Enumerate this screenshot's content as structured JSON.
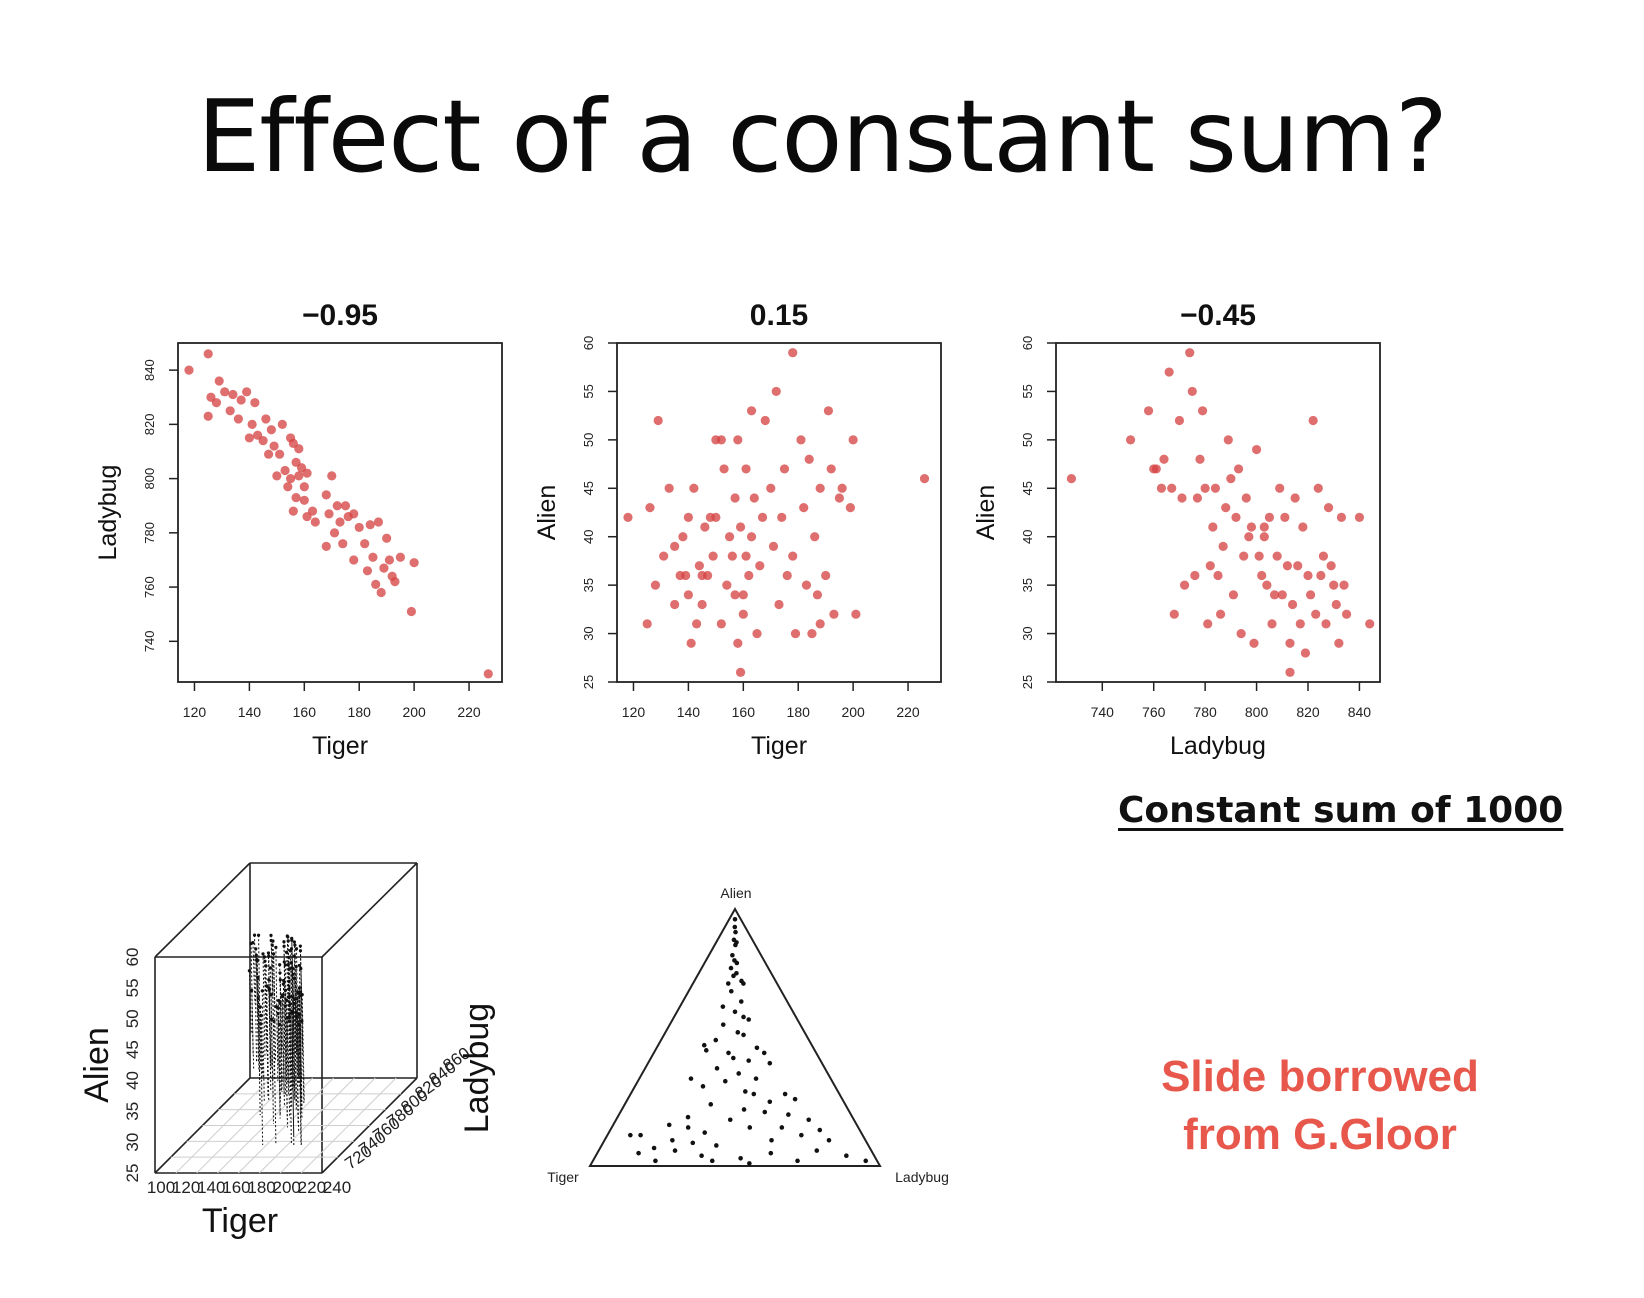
{
  "slide": {
    "title": "Effect of a constant sum?",
    "subtitle": "Constant sum of 1000",
    "credit_line1": "Slide borrowed",
    "credit_line2": "from G.Gloor",
    "point_color": "#d64545",
    "ternary_point_color": "#111111",
    "credit_color": "#e8574c"
  },
  "chart_data": [
    {
      "type": "scatter",
      "title": "−0.95",
      "xlabel": "Tiger",
      "ylabel": "Ladybug",
      "xlim": [
        114,
        232
      ],
      "ylim": [
        725,
        850
      ],
      "xticks": [
        120,
        140,
        160,
        180,
        200,
        220
      ],
      "yticks": [
        740,
        760,
        780,
        800,
        820,
        840
      ],
      "points": [
        [
          118,
          840
        ],
        [
          125,
          846
        ],
        [
          129,
          836
        ],
        [
          126,
          830
        ],
        [
          131,
          832
        ],
        [
          125,
          823
        ],
        [
          128,
          828
        ],
        [
          134,
          831
        ],
        [
          137,
          829
        ],
        [
          133,
          825
        ],
        [
          139,
          832
        ],
        [
          142,
          828
        ],
        [
          136,
          822
        ],
        [
          141,
          820
        ],
        [
          146,
          822
        ],
        [
          143,
          816
        ],
        [
          148,
          818
        ],
        [
          140,
          815
        ],
        [
          152,
          820
        ],
        [
          149,
          812
        ],
        [
          145,
          814
        ],
        [
          155,
          815
        ],
        [
          151,
          809
        ],
        [
          147,
          809
        ],
        [
          156,
          813
        ],
        [
          157,
          806
        ],
        [
          153,
          803
        ],
        [
          158,
          811
        ],
        [
          150,
          801
        ],
        [
          159,
          804
        ],
        [
          160,
          797
        ],
        [
          155,
          800
        ],
        [
          161,
          802
        ],
        [
          154,
          797
        ],
        [
          157,
          793
        ],
        [
          158,
          801
        ],
        [
          160,
          792
        ],
        [
          163,
          788
        ],
        [
          156,
          788
        ],
        [
          161,
          786
        ],
        [
          164,
          784
        ],
        [
          170,
          801
        ],
        [
          168,
          794
        ],
        [
          172,
          790
        ],
        [
          169,
          787
        ],
        [
          175,
          790
        ],
        [
          173,
          784
        ],
        [
          176,
          786
        ],
        [
          178,
          787
        ],
        [
          171,
          780
        ],
        [
          168,
          775
        ],
        [
          174,
          776
        ],
        [
          180,
          782
        ],
        [
          182,
          776
        ],
        [
          178,
          770
        ],
        [
          184,
          783
        ],
        [
          187,
          784
        ],
        [
          185,
          771
        ],
        [
          190,
          778
        ],
        [
          183,
          766
        ],
        [
          186,
          761
        ],
        [
          189,
          767
        ],
        [
          188,
          758
        ],
        [
          192,
          764
        ],
        [
          191,
          770
        ],
        [
          195,
          771
        ],
        [
          193,
          762
        ],
        [
          200,
          769
        ],
        [
          199,
          751
        ],
        [
          227,
          728
        ]
      ]
    },
    {
      "type": "scatter",
      "title": "0.15",
      "xlabel": "Tiger",
      "ylabel": "Alien",
      "xlim": [
        114,
        232
      ],
      "ylim": [
        25,
        60
      ],
      "xticks": [
        120,
        140,
        160,
        180,
        200,
        220
      ],
      "yticks": [
        25,
        30,
        35,
        40,
        45,
        50,
        55,
        60
      ],
      "points": [
        [
          118,
          42
        ],
        [
          125,
          31
        ],
        [
          126,
          43
        ],
        [
          128,
          35
        ],
        [
          131,
          38
        ],
        [
          133,
          45
        ],
        [
          135,
          33
        ],
        [
          137,
          36
        ],
        [
          138,
          40
        ],
        [
          140,
          34
        ],
        [
          140,
          42
        ],
        [
          141,
          29
        ],
        [
          142,
          45
        ],
        [
          143,
          31
        ],
        [
          144,
          37
        ],
        [
          145,
          33
        ],
        [
          146,
          41
        ],
        [
          147,
          36
        ],
        [
          149,
          38
        ],
        [
          150,
          42
        ],
        [
          152,
          31
        ],
        [
          153,
          47
        ],
        [
          154,
          35
        ],
        [
          155,
          40
        ],
        [
          156,
          38
        ],
        [
          157,
          44
        ],
        [
          157,
          34
        ],
        [
          158,
          50
        ],
        [
          159,
          41
        ],
        [
          160,
          32
        ],
        [
          161,
          47
        ],
        [
          162,
          36
        ],
        [
          163,
          53
        ],
        [
          164,
          44
        ],
        [
          165,
          30
        ],
        [
          166,
          37
        ],
        [
          167,
          42
        ],
        [
          168,
          52
        ],
        [
          170,
          45
        ],
        [
          171,
          39
        ],
        [
          172,
          55
        ],
        [
          173,
          33
        ],
        [
          174,
          42
        ],
        [
          175,
          47
        ],
        [
          176,
          36
        ],
        [
          178,
          38
        ],
        [
          179,
          30
        ],
        [
          181,
          50
        ],
        [
          182,
          43
        ],
        [
          183,
          35
        ],
        [
          184,
          48
        ],
        [
          185,
          30
        ],
        [
          186,
          40
        ],
        [
          187,
          34
        ],
        [
          188,
          45
        ],
        [
          190,
          36
        ],
        [
          191,
          53
        ],
        [
          192,
          47
        ],
        [
          193,
          32
        ],
        [
          195,
          44
        ],
        [
          199,
          43
        ],
        [
          200,
          50
        ],
        [
          201,
          32
        ],
        [
          226,
          46
        ],
        [
          158,
          29
        ],
        [
          159,
          26
        ],
        [
          160,
          34
        ],
        [
          161,
          38
        ],
        [
          163,
          40
        ],
        [
          148,
          42
        ],
        [
          150,
          50
        ],
        [
          145,
          36
        ],
        [
          178,
          59
        ],
        [
          139,
          36
        ],
        [
          135,
          39
        ],
        [
          129,
          52
        ],
        [
          152,
          50
        ],
        [
          188,
          31
        ],
        [
          196,
          45
        ]
      ]
    },
    {
      "type": "scatter",
      "title": "−0.45",
      "xlabel": "Ladybug",
      "ylabel": "Alien",
      "xlim": [
        722,
        848
      ],
      "ylim": [
        25,
        60
      ],
      "xticks": [
        740,
        760,
        780,
        800,
        820,
        840
      ],
      "yticks": [
        25,
        30,
        35,
        40,
        45,
        50,
        55,
        60
      ],
      "points": [
        [
          728,
          46
        ],
        [
          751,
          50
        ],
        [
          758,
          53
        ],
        [
          761,
          47
        ],
        [
          763,
          45
        ],
        [
          764,
          48
        ],
        [
          766,
          57
        ],
        [
          767,
          45
        ],
        [
          768,
          32
        ],
        [
          770,
          52
        ],
        [
          771,
          44
        ],
        [
          772,
          35
        ],
        [
          774,
          59
        ],
        [
          775,
          55
        ],
        [
          776,
          36
        ],
        [
          777,
          44
        ],
        [
          778,
          48
        ],
        [
          779,
          53
        ],
        [
          780,
          45
        ],
        [
          781,
          31
        ],
        [
          782,
          37
        ],
        [
          783,
          41
        ],
        [
          784,
          45
        ],
        [
          785,
          36
        ],
        [
          786,
          32
        ],
        [
          787,
          39
        ],
        [
          788,
          43
        ],
        [
          789,
          50
        ],
        [
          790,
          46
        ],
        [
          791,
          34
        ],
        [
          792,
          42
        ],
        [
          793,
          47
        ],
        [
          794,
          30
        ],
        [
          795,
          38
        ],
        [
          796,
          44
        ],
        [
          797,
          40
        ],
        [
          798,
          41
        ],
        [
          799,
          29
        ],
        [
          800,
          49
        ],
        [
          801,
          38
        ],
        [
          802,
          36
        ],
        [
          803,
          40
        ],
        [
          804,
          35
        ],
        [
          805,
          42
        ],
        [
          806,
          31
        ],
        [
          807,
          34
        ],
        [
          808,
          38
        ],
        [
          809,
          45
        ],
        [
          810,
          34
        ],
        [
          811,
          42
        ],
        [
          812,
          37
        ],
        [
          813,
          29
        ],
        [
          814,
          33
        ],
        [
          815,
          44
        ],
        [
          816,
          37
        ],
        [
          817,
          31
        ],
        [
          818,
          41
        ],
        [
          819,
          28
        ],
        [
          820,
          36
        ],
        [
          821,
          34
        ],
        [
          822,
          52
        ],
        [
          823,
          32
        ],
        [
          824,
          45
        ],
        [
          825,
          36
        ],
        [
          826,
          38
        ],
        [
          827,
          31
        ],
        [
          828,
          43
        ],
        [
          829,
          37
        ],
        [
          830,
          35
        ],
        [
          831,
          33
        ],
        [
          832,
          29
        ],
        [
          833,
          42
        ],
        [
          834,
          35
        ],
        [
          835,
          32
        ],
        [
          840,
          42
        ],
        [
          844,
          31
        ],
        [
          760,
          47
        ],
        [
          813,
          26
        ],
        [
          803,
          41
        ]
      ]
    },
    {
      "type": "scatter",
      "subtype": "3d-scatter",
      "xlabel": "Tiger",
      "ylabel": "Ladybug",
      "zlabel": "Alien",
      "xticks": [
        100,
        120,
        140,
        160,
        180,
        200,
        220,
        240
      ],
      "yticks": [
        720,
        740,
        760,
        780,
        800,
        820,
        840,
        860
      ],
      "zticks": [
        25,
        30,
        35,
        40,
        45,
        50,
        55,
        60
      ]
    },
    {
      "type": "scatter",
      "subtype": "ternary",
      "vertex_labels": [
        "Alien",
        "Tiger",
        "Ladybug"
      ],
      "points": [
        [
          0.5,
          0.96
        ],
        [
          0.49,
          0.93
        ],
        [
          0.52,
          0.91
        ],
        [
          0.47,
          0.88
        ],
        [
          0.51,
          0.86
        ],
        [
          0.54,
          0.87
        ],
        [
          0.45,
          0.82
        ],
        [
          0.49,
          0.8
        ],
        [
          0.53,
          0.79
        ],
        [
          0.44,
          0.77
        ],
        [
          0.48,
          0.74
        ],
        [
          0.52,
          0.75
        ],
        [
          0.58,
          0.72
        ],
        [
          0.6,
          0.71
        ],
        [
          0.42,
          0.71
        ],
        [
          0.46,
          0.68
        ],
        [
          0.56,
          0.64
        ],
        [
          0.39,
          0.62
        ],
        [
          0.5,
          0.6
        ],
        [
          0.57,
          0.58
        ],
        [
          0.61,
          0.57
        ],
        [
          0.41,
          0.55
        ],
        [
          0.52,
          0.52
        ],
        [
          0.56,
          0.51
        ],
        [
          0.37,
          0.49
        ],
        [
          0.3,
          0.47
        ],
        [
          0.32,
          0.45
        ],
        [
          0.46,
          0.44
        ],
        [
          0.49,
          0.42
        ],
        [
          0.64,
          0.46
        ],
        [
          0.68,
          0.44
        ],
        [
          0.58,
          0.41
        ],
        [
          0.7,
          0.4
        ],
        [
          0.4,
          0.38
        ],
        [
          0.52,
          0.36
        ],
        [
          0.61,
          0.34
        ],
        [
          0.45,
          0.33
        ],
        [
          0.27,
          0.34
        ],
        [
          0.34,
          0.31
        ],
        [
          0.55,
          0.29
        ],
        [
          0.59,
          0.28
        ],
        [
          0.74,
          0.28
        ],
        [
          0.78,
          0.26
        ],
        [
          0.66,
          0.25
        ],
        [
          0.39,
          0.24
        ],
        [
          0.54,
          0.22
        ],
        [
          0.63,
          0.21
        ],
        [
          0.73,
          0.2
        ],
        [
          0.3,
          0.19
        ],
        [
          0.48,
          0.18
        ],
        [
          0.23,
          0.16
        ],
        [
          0.31,
          0.15
        ],
        [
          0.38,
          0.13
        ],
        [
          0.56,
          0.15
        ],
        [
          0.69,
          0.15
        ],
        [
          0.81,
          0.18
        ],
        [
          0.84,
          0.14
        ],
        [
          0.13,
          0.12
        ],
        [
          0.26,
          0.1
        ],
        [
          0.34,
          0.09
        ],
        [
          0.43,
          0.08
        ],
        [
          0.64,
          0.1
        ],
        [
          0.76,
          0.12
        ],
        [
          0.86,
          0.1
        ],
        [
          0.2,
          0.07
        ],
        [
          0.28,
          0.06
        ],
        [
          0.15,
          0.05
        ],
        [
          0.09,
          0.12
        ],
        [
          0.38,
          0.04
        ],
        [
          0.52,
          0.03
        ],
        [
          0.63,
          0.05
        ],
        [
          0.8,
          0.06
        ],
        [
          0.9,
          0.04
        ],
        [
          0.22,
          0.02
        ],
        [
          0.42,
          0.02
        ],
        [
          0.55,
          0.01
        ],
        [
          0.72,
          0.02
        ],
        [
          0.96,
          0.02
        ]
      ]
    }
  ]
}
